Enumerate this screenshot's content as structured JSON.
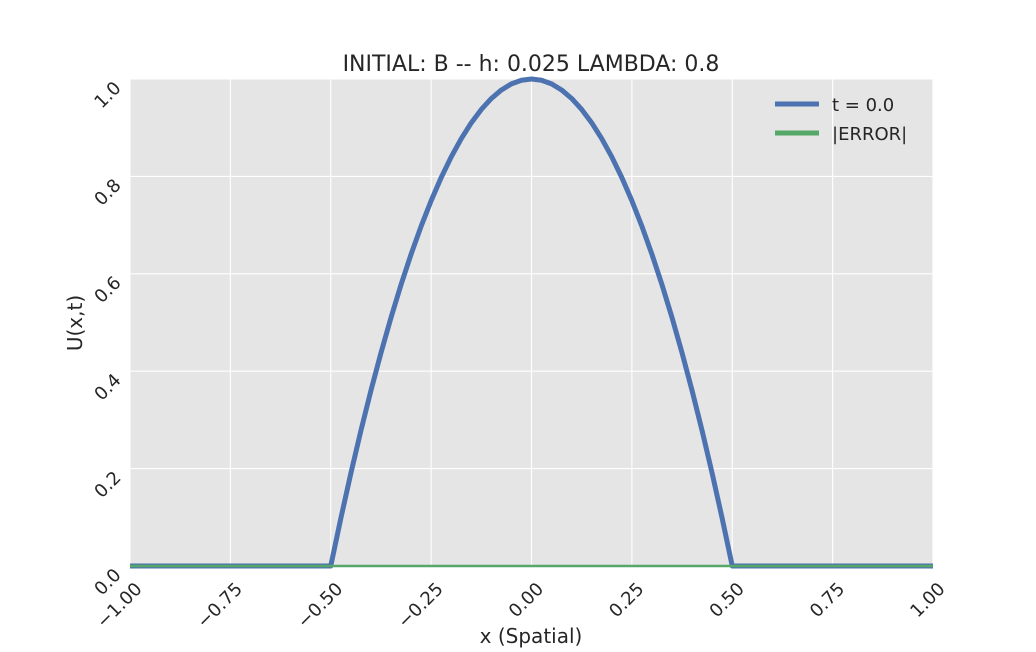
{
  "chart_data": {
    "type": "line",
    "title": "INITIAL: B -- h: 0.025 LAMBDA: 0.8",
    "xlabel": "x (Spatial)",
    "ylabel": "U(x,t)",
    "xlim": [
      -1.0,
      1.0
    ],
    "ylim": [
      0.0,
      1.0
    ],
    "xticks": [
      -1.0,
      -0.75,
      -0.5,
      -0.25,
      0.0,
      0.25,
      0.5,
      0.75,
      1.0
    ],
    "xtick_labels": [
      "−1.00",
      "−0.75",
      "−0.50",
      "−0.25",
      "0.00",
      "0.25",
      "0.50",
      "0.75",
      "1.00"
    ],
    "yticks": [
      0.0,
      0.2,
      0.4,
      0.6,
      0.8,
      1.0
    ],
    "ytick_labels": [
      "0.0",
      "0.2",
      "0.4",
      "0.6",
      "0.8",
      "1.0"
    ],
    "grid": true,
    "legend_position": "top-right",
    "background_color": "#e5e5e5",
    "grid_color": "#ffffff",
    "series": [
      {
        "name": "t = 0.0",
        "color": "#4c72b0",
        "x": [
          -1.0,
          -0.975,
          -0.95,
          -0.925,
          -0.9,
          -0.875,
          -0.85,
          -0.825,
          -0.8,
          -0.775,
          -0.75,
          -0.725,
          -0.7,
          -0.675,
          -0.65,
          -0.625,
          -0.6,
          -0.575,
          -0.55,
          -0.525,
          -0.5,
          -0.475,
          -0.45,
          -0.425,
          -0.4,
          -0.375,
          -0.35,
          -0.325,
          -0.3,
          -0.275,
          -0.25,
          -0.225,
          -0.2,
          -0.175,
          -0.15,
          -0.125,
          -0.1,
          -0.075,
          -0.05,
          -0.025,
          0.0,
          0.025,
          0.05,
          0.075,
          0.1,
          0.125,
          0.15,
          0.175,
          0.2,
          0.225,
          0.25,
          0.275,
          0.3,
          0.325,
          0.35,
          0.375,
          0.4,
          0.425,
          0.45,
          0.475,
          0.5,
          0.525,
          0.55,
          0.575,
          0.6,
          0.625,
          0.65,
          0.675,
          0.7,
          0.725,
          0.75,
          0.775,
          0.8,
          0.825,
          0.85,
          0.875,
          0.9,
          0.925,
          0.95,
          0.975,
          1.0
        ],
        "y": [
          0,
          0,
          0,
          0,
          0,
          0,
          0,
          0,
          0,
          0,
          0,
          0,
          0,
          0,
          0,
          0,
          0,
          0,
          0,
          0,
          0,
          0.0975,
          0.19,
          0.2775,
          0.36,
          0.4375,
          0.51,
          0.5775,
          0.64,
          0.6975,
          0.75,
          0.7975,
          0.84,
          0.8775,
          0.91,
          0.9375,
          0.96,
          0.9775,
          0.99,
          0.9975,
          1.0,
          0.9975,
          0.99,
          0.9775,
          0.96,
          0.9375,
          0.91,
          0.8775,
          0.84,
          0.7975,
          0.75,
          0.6975,
          0.64,
          0.5775,
          0.51,
          0.4375,
          0.36,
          0.2775,
          0.19,
          0.0975,
          0,
          0,
          0,
          0,
          0,
          0,
          0,
          0,
          0,
          0,
          0,
          0,
          0,
          0,
          0,
          0,
          0,
          0,
          0,
          0,
          0
        ]
      },
      {
        "name": "|ERROR|",
        "color": "#55a868",
        "x": [
          -1.0,
          1.0
        ],
        "y": [
          0.0,
          0.0
        ]
      }
    ]
  }
}
